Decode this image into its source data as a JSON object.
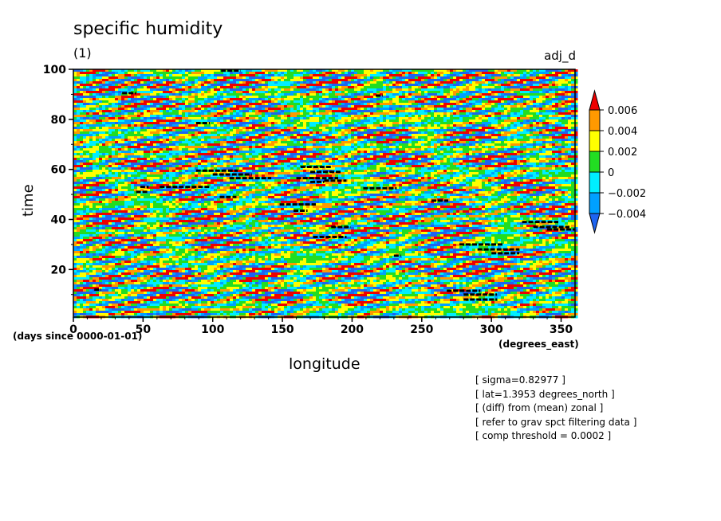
{
  "chart_data": {
    "type": "heatmap",
    "title": "specific humidity",
    "units": "(1)",
    "variable_name": "adj_d",
    "xlabel": "longitude",
    "xunit": "(degrees_east)",
    "ylabel": "time",
    "yunit": "(days since 0000-01-01)",
    "xlim": [
      0,
      360
    ],
    "ylim": [
      1,
      100
    ],
    "x_ticks": [
      0,
      50,
      100,
      150,
      200,
      250,
      300,
      350
    ],
    "y_ticks": [
      20,
      40,
      60,
      80,
      100
    ],
    "colorbar": {
      "levels": [
        -0.004,
        -0.002,
        0,
        0.002,
        0.004,
        0.006
      ],
      "level_labels": [
        "0.006",
        "0.004",
        "0.002",
        "0",
        "−0.002",
        "−0.004"
      ],
      "colors": [
        "#1e64f0",
        "#00a0ff",
        "#00eeff",
        "#22dd22",
        "#ffff00",
        "#ff9900",
        "#ee0000"
      ]
    },
    "markers": [
      {
        "lon": 15,
        "t": 12,
        "len": 5
      },
      {
        "lon": 35,
        "t": 90.5,
        "len": 10
      },
      {
        "lon": 48,
        "t": 53,
        "len": 6
      },
      {
        "lon": 45,
        "t": 51,
        "len": 8
      },
      {
        "lon": 62,
        "t": 53,
        "len": 36
      },
      {
        "lon": 88,
        "t": 78.5,
        "len": 10
      },
      {
        "lon": 88,
        "t": 59.5,
        "len": 30
      },
      {
        "lon": 100,
        "t": 58,
        "len": 28
      },
      {
        "lon": 112,
        "t": 56.5,
        "len": 30
      },
      {
        "lon": 105,
        "t": 49,
        "len": 12
      },
      {
        "lon": 106,
        "t": 99.5,
        "len": 14
      },
      {
        "lon": 148,
        "t": 46,
        "len": 26
      },
      {
        "lon": 158,
        "t": 43.5,
        "len": 10
      },
      {
        "lon": 160,
        "t": 56.5,
        "len": 30
      },
      {
        "lon": 163,
        "t": 61,
        "len": 22
      },
      {
        "lon": 170,
        "t": 59,
        "len": 22
      },
      {
        "lon": 170,
        "t": 55,
        "len": 10
      },
      {
        "lon": 180,
        "t": 55.5,
        "len": 16
      },
      {
        "lon": 185,
        "t": 37,
        "len": 14
      },
      {
        "lon": 172,
        "t": 33,
        "len": 24
      },
      {
        "lon": 208,
        "t": 52.5,
        "len": 24
      },
      {
        "lon": 217,
        "t": 89.5,
        "len": 5
      },
      {
        "lon": 230,
        "t": 25.5,
        "len": 5
      },
      {
        "lon": 257,
        "t": 47.5,
        "len": 12
      },
      {
        "lon": 268,
        "t": 11.5,
        "len": 24
      },
      {
        "lon": 280,
        "t": 10,
        "len": 24
      },
      {
        "lon": 280,
        "t": 8,
        "len": 24
      },
      {
        "lon": 277,
        "t": 30,
        "len": 32
      },
      {
        "lon": 290,
        "t": 28,
        "len": 30
      },
      {
        "lon": 300,
        "t": 26.5,
        "len": 20
      },
      {
        "lon": 322,
        "t": 39,
        "len": 26
      },
      {
        "lon": 330,
        "t": 37,
        "len": 26
      },
      {
        "lon": 340,
        "t": 36,
        "len": 20
      }
    ]
  },
  "notes": [
    "[ sigma=0.82977 ]",
    "[ lat=1.3953 degrees_north ]",
    "[ (diff) from (mean) zonal ]",
    "[ refer to grav spct filtering data ]",
    "[ comp threshold = 0.0002 ]"
  ]
}
